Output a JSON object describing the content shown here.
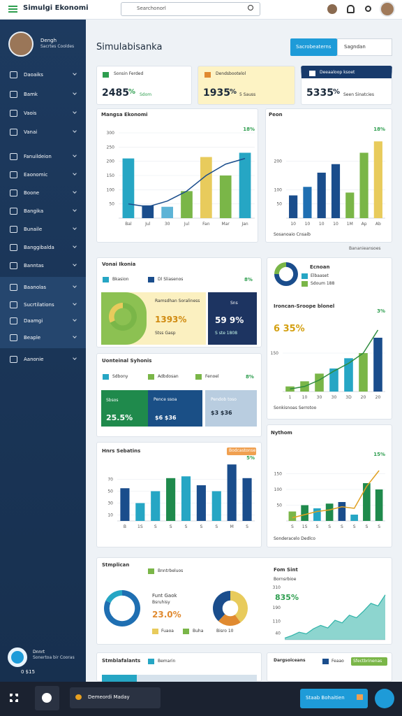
{
  "topbar": {
    "title": "Simulgi Ekonomi",
    "search": "Searchonorl"
  },
  "sidebar": {
    "user_name": "Dengh",
    "user_role": "Sacrtes Cooldes",
    "items": [
      "Daoaiks",
      "Bamk",
      "Vaois",
      "Vanai",
      "Fanuildeion",
      "Eaonomic",
      "Boone",
      "Bangika",
      "Bunaile",
      "Banggibalda",
      "Banntas",
      "Baanolas",
      "Sucrtilations",
      "Daamgi",
      "Beaple",
      "Aanonie"
    ],
    "footer_title": "Dnnrt",
    "footer_sub": "Sonertoa bir Cooras",
    "footer_value": "0 $15"
  },
  "header": {
    "title": "Simulabisanka",
    "button": "Sacrobeaterns",
    "dropdown": "Sagndan"
  },
  "kpis": [
    {
      "label": "Sonsin Ferded",
      "value": "2485",
      "unit": "%",
      "note": "Sdom"
    },
    {
      "label": "Dendsbootelol",
      "value": "1935",
      "unit": "%",
      "note": "5 Sauss"
    },
    {
      "label": "Deeaaloop ksoet",
      "value": "5335",
      "unit": "%",
      "note": "Seen Sinatcies"
    }
  ],
  "panels": {
    "mangsa": {
      "title": "Mangsa Ekonomi"
    },
    "peon": {
      "title": "Peon",
      "foot": "Sosanoaio Cnsaib",
      "below": "Bananieansoes"
    },
    "vonai": {
      "title": "Vonai Ikonia",
      "legend": [
        "Bkasion",
        "Dl Sliasenos"
      ],
      "badge": "8%",
      "box_title": "Ramsdhan Soraliness",
      "box_value": "1393%",
      "box_note": "Stss Gasp",
      "navy_title": "Sns",
      "navy_value": "59 9%",
      "navy_note": "S ste 1808"
    },
    "ecnoan": {
      "title": "Ecnoan",
      "legend": [
        "Elbaaset",
        "Sdoum 188"
      ],
      "chart_title": "Ironcan-Sroope blonel",
      "big": "6 35%",
      "foot": "Sonkisnoas Serrotoo"
    },
    "uont": {
      "title": "Uonteinal Syhonis",
      "legend": [
        "Sdbony",
        "Adbdosan",
        "Fenoel"
      ],
      "badge": "8%",
      "boxes": [
        {
          "title": "Sbsos",
          "value": "25.5%"
        },
        {
          "title": "Pence ssoa",
          "value": "$6 $36"
        },
        {
          "title": "Pendob toso",
          "value": "$3 $36"
        }
      ]
    },
    "hnrs": {
      "title": "Hnrs Sebatins",
      "badge": "Bodcastonse"
    },
    "nythom": {
      "title": "Nythom",
      "foot": "Sonderacelo Dedlco"
    },
    "stmp": {
      "title": "Stmplican",
      "legend": "Bnntrbeluos",
      "label": "Funt Gaok",
      "sub": "Bsruhisy",
      "value": "23.0%",
      "legend2": [
        "Fuaoa",
        "Buha",
        "Bisro 10"
      ],
      "area_title": "Fom Sint",
      "area_sub": "Bornsrbioe",
      "area_value": "835%"
    },
    "bottom_left": {
      "title": "Stmblafalants",
      "legend": "Bemarin"
    },
    "bottom_right": {
      "title": "Dargsoiceans",
      "legend": "Feaao",
      "badge": "Sfectbrinenas"
    }
  },
  "taskbar": {
    "pill": "Demeordi Maday",
    "button": "Staab Bohaitien"
  },
  "charts": [
    {
      "type": "combo",
      "categories": [
        "Bal",
        "Jul",
        "30",
        "Jul",
        "Fan",
        "Mar",
        "Jan"
      ],
      "ylim": [
        0,
        300
      ],
      "yticks": [
        50,
        100,
        150,
        200,
        250,
        300
      ],
      "grid": true,
      "annotation": "18%",
      "series": [
        {
          "kind": "bar",
          "colors": [
            "#26a6c4",
            "#1a4d8c",
            "#5db3d6",
            "#7ab648",
            "#e8cb5c",
            "#7ab648",
            "#26a6c4"
          ],
          "values": [
            210,
            45,
            40,
            95,
            215,
            150,
            230
          ]
        },
        {
          "kind": "line",
          "color": "#1a4d8c",
          "values": [
            50,
            40,
            60,
            95,
            150,
            190,
            210
          ]
        }
      ]
    },
    {
      "type": "combo",
      "categories": [
        "10",
        "10",
        "10",
        "10",
        "1M",
        "Ap",
        "Ab"
      ],
      "ylim": [
        0,
        300
      ],
      "yticks": [
        50,
        100,
        200
      ],
      "grid": true,
      "annotation": "18%",
      "series": [
        {
          "kind": "bar",
          "colors": [
            "#1a4d8c",
            "#1f6fb2",
            "#1a4d8c",
            "#1a4d8c",
            "#7ab648",
            "#7ab648",
            "#e8cb5c"
          ],
          "values": [
            80,
            110,
            160,
            190,
            90,
            230,
            270
          ]
        }
      ]
    },
    {
      "type": "combo",
      "categories": [
        "1",
        "10",
        "30",
        "30",
        "3D",
        "20",
        "20"
      ],
      "ylim": [
        0,
        300
      ],
      "yticks": [
        150
      ],
      "grid": true,
      "annotation": "3%",
      "series": [
        {
          "kind": "bar",
          "colors": [
            "#7ab648",
            "#7ab648",
            "#7ab648",
            "#26a6c4",
            "#26a6c4",
            "#7ab648",
            "#1a4d8c"
          ],
          "values": [
            20,
            40,
            70,
            90,
            130,
            150,
            210
          ]
        },
        {
          "kind": "line",
          "color": "#2e8b3d",
          "values": [
            10,
            20,
            45,
            80,
            110,
            150,
            240
          ]
        }
      ]
    },
    {
      "type": "combo",
      "categories": [
        "B",
        "1S",
        "S",
        "S",
        "S",
        "S",
        "S",
        "M",
        "S"
      ],
      "ylim": [
        0,
        100
      ],
      "yticks": [
        10,
        30,
        50,
        70
      ],
      "grid": true,
      "annotation": "5%",
      "series": [
        {
          "kind": "bar",
          "colors": [
            "#1a4d8c",
            "#26a6c4",
            "#26a6c4",
            "#1f8a4c",
            "#26a6c4",
            "#1a4d8c",
            "#26a6c4",
            "#1a4d8c",
            "#1a4d8c"
          ],
          "values": [
            55,
            30,
            50,
            72,
            75,
            60,
            50,
            95,
            72
          ]
        }
      ]
    },
    {
      "type": "combo",
      "categories": [
        "S",
        "1S",
        "S",
        "S",
        "S",
        "S",
        "S",
        "S"
      ],
      "ylim": [
        0,
        200
      ],
      "yticks": [
        50,
        100,
        150
      ],
      "grid": true,
      "annotation": "15%",
      "series": [
        {
          "kind": "bar",
          "colors": [
            "#7ab648",
            "#1f8a4c",
            "#26a6c4",
            "#1f8a4c",
            "#1a4d8c",
            "#26a6c4",
            "#1f8a4c",
            "#1f8a4c"
          ],
          "values": [
            30,
            50,
            40,
            55,
            60,
            20,
            120,
            100
          ]
        },
        {
          "kind": "line",
          "color": "#e0a020",
          "values": [
            10,
            20,
            30,
            35,
            45,
            40,
            110,
            160
          ]
        }
      ]
    },
    {
      "type": "area",
      "ylim": [
        0,
        330
      ],
      "yticks": [
        40,
        110,
        190,
        310
      ],
      "grid": false,
      "color": "#2fb3a8",
      "values": [
        10,
        25,
        45,
        35,
        65,
        85,
        70,
        115,
        100,
        145,
        130,
        170,
        215,
        200,
        265
      ]
    },
    {
      "type": "pie",
      "values": [
        68,
        32
      ],
      "colors": [
        "#7ab648",
        "#e8cb5c"
      ],
      "inner": 0.62
    },
    {
      "type": "pie",
      "values": [
        75,
        25
      ],
      "colors": [
        "#1a4d8c",
        "#7ab648"
      ],
      "inner": 0.6
    },
    {
      "type": "pie",
      "values": [
        82,
        18
      ],
      "colors": [
        "#1f6fb2",
        "#26a6c4"
      ],
      "inner": 0.7
    },
    {
      "type": "pie",
      "values": [
        40,
        22,
        38
      ],
      "colors": [
        "#e8cb5c",
        "#e08a30",
        "#1a4d8c"
      ],
      "inner": 0.45
    }
  ]
}
